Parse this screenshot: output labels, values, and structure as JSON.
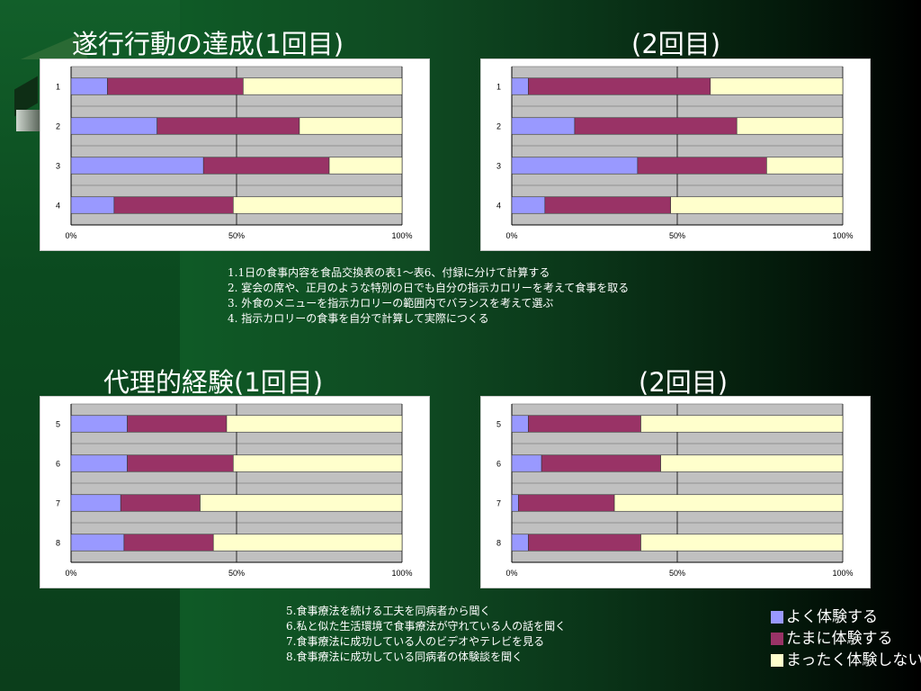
{
  "titles": {
    "efficacy_1": "遂行行動の達成(1回目)",
    "efficacy_2": "(2回目)",
    "vicarious_1": "代理的経験(1回目)",
    "vicarious_2": "(2回目)"
  },
  "notes_top": [
    "1.1日の食事内容を食品交換表の表1～表6、付録に分けて計算する",
    "2. 宴会の席や、正月のような特別の日でも自分の指示カロリーを考えて食事を取る",
    "3. 外食のメニューを指示カロリーの範囲内でバランスを考えて選ぶ",
    "4. 指示カロリーの食事を自分で計算して実際につくる"
  ],
  "notes_bottom": [
    "5.食事療法を続ける工夫を同病者から聞く",
    "6.私と似た生活環境で食事療法が守れている人の話を聞く",
    "7.食事療法に成功している人のビデオやテレビを見る",
    "8.食事療法に成功している同病者の体験談を聞く"
  ],
  "legend": [
    {
      "label": "よく体験する",
      "color": "#9999ff"
    },
    {
      "label": "たまに体験する",
      "color": "#993366"
    },
    {
      "label": "まったく体験しない",
      "color": "#ffffcc"
    }
  ],
  "chart_data": [
    {
      "type": "bar",
      "orientation": "horizontal",
      "stacked": "percent",
      "title": "遂行行動の達成(1回目)",
      "categories": [
        "1",
        "2",
        "3",
        "4"
      ],
      "x_ticks": [
        "0%",
        "50%",
        "100%"
      ],
      "xlim": [
        0,
        100
      ],
      "series": [
        {
          "name": "よく体験する",
          "values": [
            11,
            26,
            40,
            13
          ]
        },
        {
          "name": "たまに体験する",
          "values": [
            41,
            43,
            38,
            36
          ]
        },
        {
          "name": "まったく体験しない",
          "values": [
            48,
            31,
            22,
            51
          ]
        }
      ]
    },
    {
      "type": "bar",
      "orientation": "horizontal",
      "stacked": "percent",
      "title": "(2回目)",
      "categories": [
        "1",
        "2",
        "3",
        "4"
      ],
      "x_ticks": [
        "0%",
        "50%",
        "100%"
      ],
      "xlim": [
        0,
        100
      ],
      "series": [
        {
          "name": "よく体験する",
          "values": [
            5,
            19,
            38,
            10
          ]
        },
        {
          "name": "たまに体験する",
          "values": [
            55,
            49,
            39,
            38
          ]
        },
        {
          "name": "まったく体験しない",
          "values": [
            40,
            32,
            23,
            52
          ]
        }
      ]
    },
    {
      "type": "bar",
      "orientation": "horizontal",
      "stacked": "percent",
      "title": "代理的経験(1回目)",
      "categories": [
        "5",
        "6",
        "7",
        "8"
      ],
      "x_ticks": [
        "0%",
        "50%",
        "100%"
      ],
      "xlim": [
        0,
        100
      ],
      "series": [
        {
          "name": "よく体験する",
          "values": [
            17,
            17,
            15,
            16
          ]
        },
        {
          "name": "たまに体験する",
          "values": [
            30,
            32,
            24,
            27
          ]
        },
        {
          "name": "まったく体験しない",
          "values": [
            53,
            51,
            61,
            57
          ]
        }
      ]
    },
    {
      "type": "bar",
      "orientation": "horizontal",
      "stacked": "percent",
      "title": "(2回目)",
      "categories": [
        "5",
        "6",
        "7",
        "8"
      ],
      "x_ticks": [
        "0%",
        "50%",
        "100%"
      ],
      "xlim": [
        0,
        100
      ],
      "series": [
        {
          "name": "よく体験する",
          "values": [
            5,
            9,
            2,
            5
          ]
        },
        {
          "name": "たまに体験する",
          "values": [
            34,
            36,
            29,
            34
          ]
        },
        {
          "name": "まったく体験しない",
          "values": [
            61,
            55,
            69,
            61
          ]
        }
      ]
    }
  ]
}
